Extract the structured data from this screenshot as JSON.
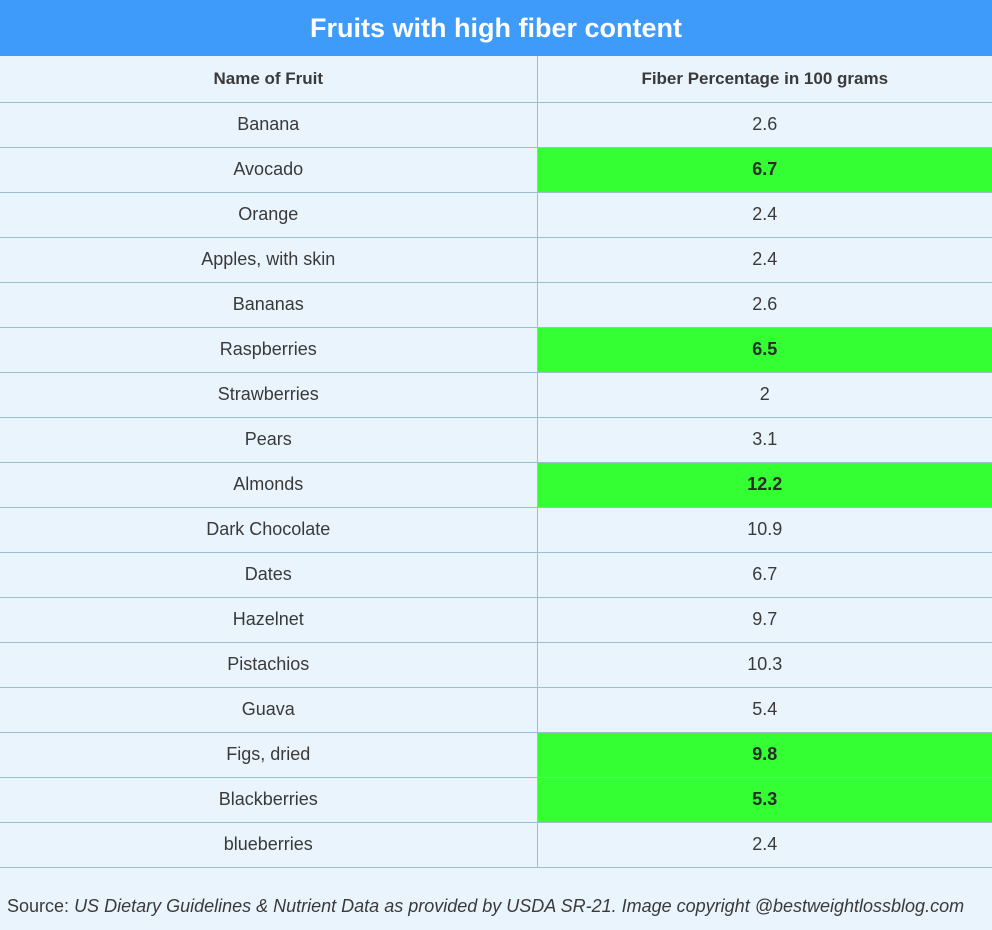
{
  "title": "Fruits with high fiber content",
  "table": {
    "headers": [
      "Name of Fruit",
      "Fiber Percentage in 100 grams"
    ],
    "rows": [
      {
        "name": "Banana",
        "fiber": "2.6",
        "highlight": false
      },
      {
        "name": "Avocado",
        "fiber": "6.7",
        "highlight": true
      },
      {
        "name": "Orange",
        "fiber": "2.4",
        "highlight": false
      },
      {
        "name": "Apples, with skin",
        "fiber": "2.4",
        "highlight": false
      },
      {
        "name": "Bananas",
        "fiber": "2.6",
        "highlight": false
      },
      {
        "name": "Raspberries",
        "fiber": "6.5",
        "highlight": true
      },
      {
        "name": "Strawberries",
        "fiber": "2",
        "highlight": false
      },
      {
        "name": "Pears",
        "fiber": "3.1",
        "highlight": false
      },
      {
        "name": "Almonds",
        "fiber": "12.2",
        "highlight": true
      },
      {
        "name": "Dark Chocolate",
        "fiber": "10.9",
        "highlight": false
      },
      {
        "name": "Dates",
        "fiber": "6.7",
        "highlight": false
      },
      {
        "name": "Hazelnet",
        "fiber": "9.7",
        "highlight": false
      },
      {
        "name": "Pistachios",
        "fiber": "10.3",
        "highlight": false
      },
      {
        "name": "Guava",
        "fiber": "5.4",
        "highlight": false
      },
      {
        "name": "Figs, dried",
        "fiber": "9.8",
        "highlight": true
      },
      {
        "name": "Blackberries",
        "fiber": "5.3",
        "highlight": true
      },
      {
        "name": "blueberries",
        "fiber": "2.4",
        "highlight": false
      }
    ]
  },
  "source": {
    "label": "Source:",
    "text": "US Dietary Guidelines & Nutrient Data as provided by USDA SR-21. Image copyright @bestweightlossblog.com"
  },
  "colors": {
    "title_bg": "#3e9bfa",
    "highlight": "#33ff33",
    "page_bg": "#eaf4fd"
  }
}
